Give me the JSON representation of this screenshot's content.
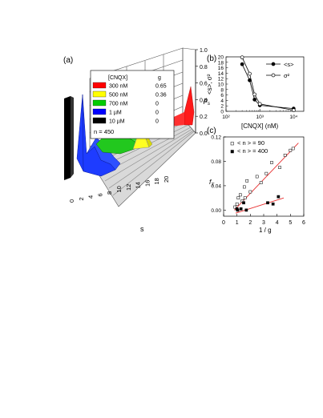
{
  "chart_data": [
    {
      "panel": "(a)",
      "type": "3d-bar",
      "xlabel": "s",
      "zlabel": "p_s",
      "x_ticks": [
        "0",
        "2",
        "4",
        "6",
        "8",
        "10",
        "12",
        "14",
        "16",
        "18",
        "20"
      ],
      "z_ticks": [
        "0.0",
        "0.2",
        "0.4",
        "0.6",
        "0.8",
        "1.0"
      ],
      "legend_header": {
        "conc": "[CNQX]",
        "g": "g"
      },
      "series": [
        {
          "name": "300 nM",
          "g": "0.65",
          "color": "#ff0000"
        },
        {
          "name": "500 nM",
          "g": "0.36",
          "color": "#ffff00"
        },
        {
          "name": "700 nM",
          "g": "0",
          "color": "#00cc00"
        },
        {
          "name": "1 µM",
          "g": "0",
          "color": "#0000ff"
        },
        {
          "name": "10 µM",
          "g": "0",
          "color": "#000000"
        }
      ],
      "note": "n = 450"
    },
    {
      "panel": "(b)",
      "type": "line",
      "xlabel": "[CNQX]  (nM)",
      "ylabel": "<s>, σ²",
      "xscale": "log",
      "x_ticks": [
        "10²",
        "10³",
        "10⁴"
      ],
      "y_ticks": [
        "0",
        "2",
        "4",
        "6",
        "8",
        "10",
        "12",
        "14",
        "16",
        "18",
        "20"
      ],
      "ylim": [
        0,
        20
      ],
      "legend_position": "top-right",
      "series": [
        {
          "name": "<s>",
          "marker": "filled-circle",
          "x": [
            300,
            500,
            700,
            1000,
            10000
          ],
          "y": [
            17.3,
            11.4,
            4.3,
            2.2,
            1.0
          ]
        },
        {
          "name": "σ²",
          "marker": "open-circle",
          "x": [
            300,
            500,
            700,
            1000,
            10000
          ],
          "y": [
            19.8,
            13.8,
            6.2,
            2.7,
            0.4
          ]
        }
      ]
    },
    {
      "panel": "(c)",
      "type": "scatter",
      "xlabel": "1 / g",
      "ylabel": "f_T",
      "xlim": [
        0,
        6
      ],
      "ylim": [
        -0.01,
        0.12
      ],
      "x_ticks": [
        "0",
        "1",
        "2",
        "3",
        "4",
        "5",
        "6"
      ],
      "y_ticks": [
        "0.00",
        "0.04",
        "0.08",
        "0.12"
      ],
      "legend_position": "top-left",
      "series": [
        {
          "name": "< n > = 90",
          "marker": "open-square",
          "fit_color": "#e83030",
          "points": [
            [
              0.85,
              0.005
            ],
            [
              1.0,
              0.01
            ],
            [
              1.1,
              0.02
            ],
            [
              1.25,
              0.025
            ],
            [
              1.4,
              0.015
            ],
            [
              1.55,
              0.038
            ],
            [
              1.6,
              0.02
            ],
            [
              1.75,
              0.048
            ],
            [
              2.0,
              0.03
            ],
            [
              2.5,
              0.055
            ],
            [
              2.8,
              0.045
            ],
            [
              3.2,
              0.06
            ],
            [
              3.6,
              0.078
            ],
            [
              4.2,
              0.07
            ],
            [
              4.6,
              0.09
            ],
            [
              5.0,
              0.098
            ],
            [
              5.2,
              0.101
            ]
          ],
          "fit": [
            [
              0.8,
              0.0
            ],
            [
              5.6,
              0.11
            ]
          ]
        },
        {
          "name": "< n > = 400",
          "marker": "filled-square",
          "fit_color": "#e83030",
          "points": [
            [
              1.0,
              0.002
            ],
            [
              1.05,
              0.0
            ],
            [
              1.3,
              0.002
            ],
            [
              1.5,
              0.012
            ],
            [
              1.7,
              0.0
            ],
            [
              3.3,
              0.012
            ],
            [
              3.7,
              0.01
            ],
            [
              4.1,
              0.022
            ]
          ],
          "fit": [
            [
              0.9,
              -0.005
            ],
            [
              4.5,
              0.02
            ]
          ]
        }
      ]
    }
  ]
}
